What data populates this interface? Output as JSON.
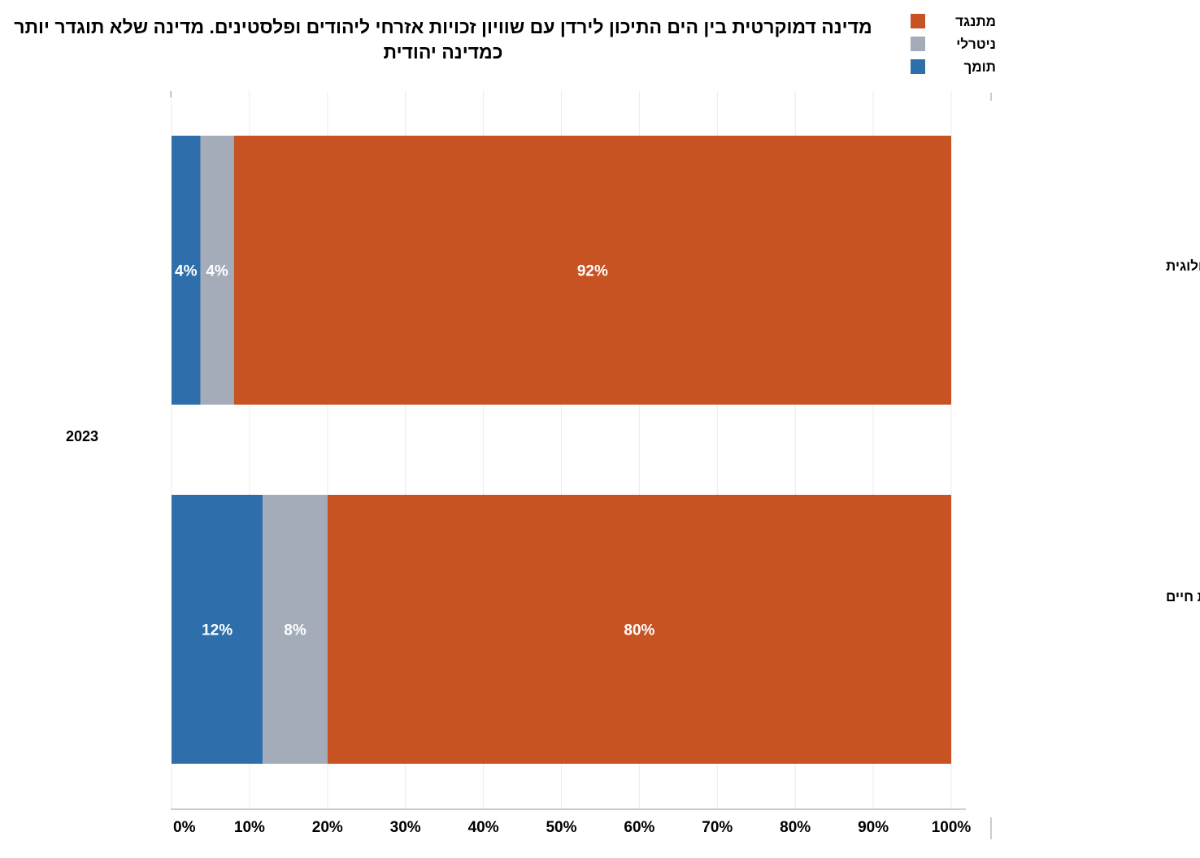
{
  "title": "מדינה דמוקרטית בין הים התיכון לירדן עם שוויון זכויות אזרחי ליהודים ופלסטינים. מדינה שלא תוגדר יותר כמדינה יהודית",
  "legend": [
    {
      "label": "מתנגד",
      "color": "#c75222"
    },
    {
      "label": "ניטרלי",
      "color": "#a3acb8"
    },
    {
      "label": "תומך",
      "color": "#2e6fab"
    }
  ],
  "chart_data": {
    "type": "bar",
    "orientation": "horizontal",
    "stacked": true,
    "group_label": "2023",
    "categories": [
      "התיישבות אידיאולוגית",
      "התיישבות איכות חיים"
    ],
    "series": [
      {
        "name": "תומך",
        "color": "#2e6fab",
        "values": [
          3.7,
          11.7
        ],
        "labels": [
          "4%",
          "12%"
        ]
      },
      {
        "name": "ניטרלי",
        "color": "#a3acb8",
        "values": [
          4.3,
          8.3
        ],
        "labels": [
          "4%",
          "8%"
        ]
      },
      {
        "name": "מתנגד",
        "color": "#c75222",
        "values": [
          92,
          80
        ],
        "labels": [
          "92%",
          "80%"
        ]
      }
    ],
    "xlim": [
      0,
      100
    ],
    "xticks": [
      "0%",
      "10%",
      "20%",
      "30%",
      "40%",
      "50%",
      "60%",
      "70%",
      "80%",
      "90%",
      "100%"
    ],
    "grid": true,
    "legend_position": "top-right"
  }
}
